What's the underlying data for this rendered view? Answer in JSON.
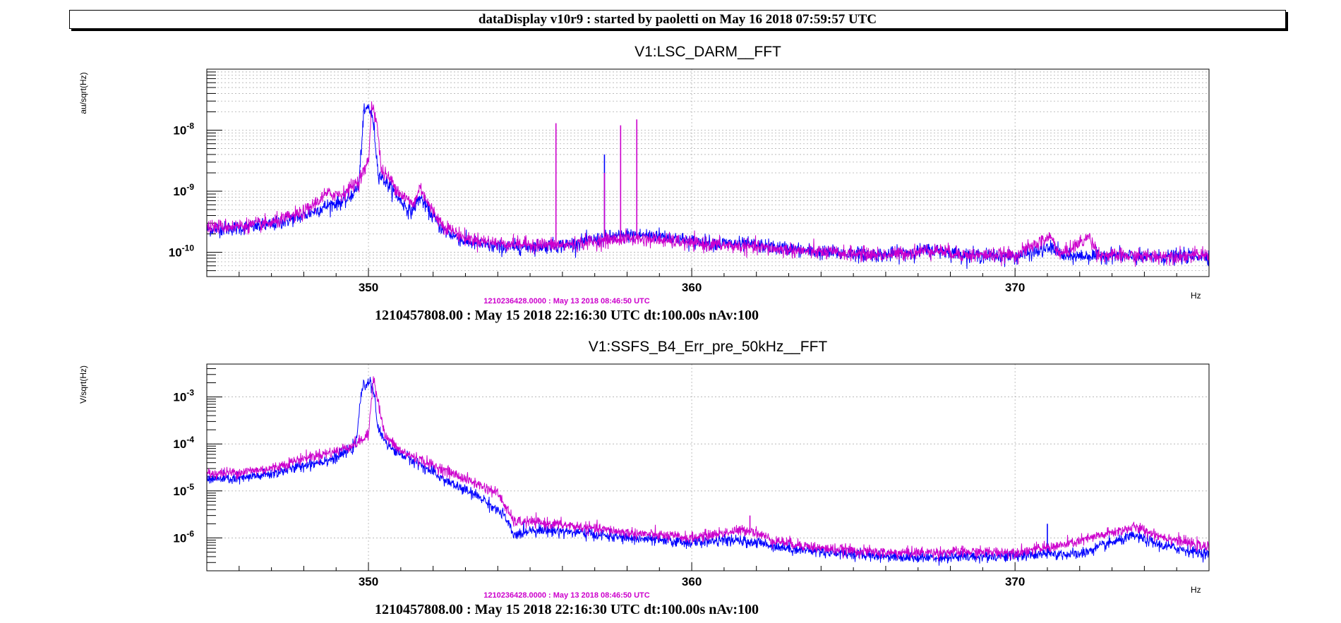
{
  "header": {
    "title": "dataDisplay v10r9 : started by paoletti on May 16 2018 07:59:57 UTC"
  },
  "colors": {
    "current": "#0000ff",
    "reference": "#cc00cc",
    "grid": "#b0b0b0"
  },
  "chart_data": [
    {
      "type": "line",
      "title": "V1:LSC_DARM__FFT",
      "ylabel": "au/sqrt(Hz)",
      "xlabel": "Hz",
      "xlim": [
        345,
        376
      ],
      "ylim": [
        4e-11,
        1e-07
      ],
      "yscale": "log",
      "grid": true,
      "xticks": [
        "350",
        "360",
        "370"
      ],
      "yticks": [
        {
          "v": 1e-08,
          "e": "-8"
        },
        {
          "v": 1e-09,
          "e": "-9"
        },
        {
          "v": 1e-10,
          "e": "-10"
        }
      ],
      "reference_label": "1210236428.0000 : May 13 2018 08:46:50 UTC",
      "timestamp": "1210457808.00 : May 15 2018 22:16:30 UTC dt:100.00s nAv:100",
      "series": [
        {
          "role": "current",
          "points": [
            [
              345,
              2.4e-10
            ],
            [
              346,
              2.5e-10
            ],
            [
              347,
              2.8e-10
            ],
            [
              348,
              4e-10
            ],
            [
              348.8,
              6e-10
            ],
            [
              349.3,
              7e-10
            ],
            [
              349.7,
              1.2e-09
            ],
            [
              349.85,
              1.8e-08
            ],
            [
              350,
              2.5e-08
            ],
            [
              350.15,
              1.4e-08
            ],
            [
              350.3,
              2e-09
            ],
            [
              350.6,
              1.3e-09
            ],
            [
              351,
              7e-10
            ],
            [
              351.3,
              4.5e-10
            ],
            [
              351.6,
              8e-10
            ],
            [
              351.9,
              4.5e-10
            ],
            [
              352.3,
              2.3e-10
            ],
            [
              353,
              1.5e-10
            ],
            [
              354,
              1.2e-10
            ],
            [
              356,
              1.3e-10
            ],
            [
              357,
              1.6e-10
            ],
            [
              358,
              1.9e-10
            ],
            [
              359,
              1.9e-10
            ],
            [
              360,
              1.5e-10
            ],
            [
              362,
              1.3e-10
            ],
            [
              364,
              1e-10
            ],
            [
              366,
              9e-11
            ],
            [
              367.5,
              1.1e-10
            ],
            [
              368.5,
              9e-11
            ],
            [
              370,
              8.5e-11
            ],
            [
              371.2,
              1.2e-10
            ],
            [
              371.5,
              8.5e-11
            ],
            [
              373,
              9e-11
            ],
            [
              374,
              8e-11
            ],
            [
              376,
              9e-11
            ]
          ],
          "spikes": [
            [
              357.3,
              4e-09
            ]
          ]
        },
        {
          "role": "reference",
          "points": [
            [
              345,
              2.6e-10
            ],
            [
              346,
              2.7e-10
            ],
            [
              347,
              3e-10
            ],
            [
              348,
              4.5e-10
            ],
            [
              348.7,
              9e-10
            ],
            [
              349.2,
              9e-10
            ],
            [
              349.7,
              1.5e-09
            ],
            [
              350,
              3e-09
            ],
            [
              350.1,
              2.8e-08
            ],
            [
              350.25,
              1.5e-08
            ],
            [
              350.4,
              2.2e-09
            ],
            [
              350.7,
              1.5e-09
            ],
            [
              351,
              9e-10
            ],
            [
              351.4,
              6e-10
            ],
            [
              351.6,
              1.2e-09
            ],
            [
              351.9,
              5.5e-10
            ],
            [
              352.3,
              2.8e-10
            ],
            [
              353,
              1.7e-10
            ],
            [
              354,
              1.4e-10
            ],
            [
              356,
              1.3e-10
            ],
            [
              357,
              1.5e-10
            ],
            [
              358,
              1.7e-10
            ],
            [
              359,
              1.6e-10
            ],
            [
              360,
              1.4e-10
            ],
            [
              362,
              1.2e-10
            ],
            [
              364,
              1e-10
            ],
            [
              366,
              9e-11
            ],
            [
              367.5,
              1.1e-10
            ],
            [
              368.5,
              9e-11
            ],
            [
              370,
              9e-11
            ],
            [
              371.1,
              1.8e-10
            ],
            [
              371.4,
              9e-11
            ],
            [
              372.3,
              1.8e-10
            ],
            [
              372.6,
              9e-11
            ],
            [
              374,
              8.5e-11
            ],
            [
              376,
              9e-11
            ]
          ],
          "spikes": [
            [
              355.8,
              1.3e-08
            ],
            [
              357.3,
              2e-09
            ],
            [
              357.8,
              1.2e-08
            ],
            [
              358.3,
              1.5e-08
            ]
          ]
        }
      ]
    },
    {
      "type": "line",
      "title": "V1:SSFS_B4_Err_pre_50kHz__FFT",
      "ylabel": "V/sqrt(Hz)",
      "xlabel": "Hz",
      "xlim": [
        345,
        376
      ],
      "ylim": [
        2e-07,
        0.005
      ],
      "yscale": "log",
      "grid": true,
      "xticks": [
        "350",
        "360",
        "370"
      ],
      "yticks": [
        {
          "v": 0.001,
          "e": "-3"
        },
        {
          "v": 0.0001,
          "e": "-4"
        },
        {
          "v": 1e-05,
          "e": "-5"
        },
        {
          "v": 1e-06,
          "e": "-6"
        }
      ],
      "reference_label": "1210236428.0000 : May 13 2018 08:46:50 UTC",
      "timestamp": "1210457808.00 : May 15 2018 22:16:30 UTC dt:100.00s nAv:100",
      "series": [
        {
          "role": "current",
          "points": [
            [
              345,
              1.8e-05
            ],
            [
              346,
              1.8e-05
            ],
            [
              347,
              2.3e-05
            ],
            [
              348,
              3.5e-05
            ],
            [
              349,
              5e-05
            ],
            [
              349.6,
              9e-05
            ],
            [
              349.8,
              0.0015
            ],
            [
              350,
              0.0022
            ],
            [
              350.15,
              0.0015
            ],
            [
              350.3,
              0.0002
            ],
            [
              350.7,
              8e-05
            ],
            [
              351.5,
              4e-05
            ],
            [
              352.5,
              1.5e-05
            ],
            [
              353.5,
              7e-06
            ],
            [
              354.2,
              3e-06
            ],
            [
              354.5,
              1.1e-06
            ],
            [
              355,
              1.5e-06
            ],
            [
              356,
              1.4e-06
            ],
            [
              358,
              1e-06
            ],
            [
              360,
              8e-07
            ],
            [
              361,
              9e-07
            ],
            [
              362,
              8e-07
            ],
            [
              363,
              6e-07
            ],
            [
              365,
              4.5e-07
            ],
            [
              367,
              3.8e-07
            ],
            [
              369,
              4e-07
            ],
            [
              370,
              4.2e-07
            ],
            [
              371,
              4.5e-07
            ],
            [
              372,
              4.5e-07
            ],
            [
              373,
              8e-07
            ],
            [
              373.7,
              1.1e-06
            ],
            [
              374.5,
              7e-07
            ],
            [
              376,
              4.5e-07
            ]
          ],
          "spikes": [
            [
              371.0,
              2e-06
            ]
          ]
        },
        {
          "role": "reference",
          "points": [
            [
              345,
              2.3e-05
            ],
            [
              346,
              2.5e-05
            ],
            [
              347,
              3e-05
            ],
            [
              348,
              5e-05
            ],
            [
              349,
              7e-05
            ],
            [
              349.6,
              0.0001
            ],
            [
              350,
              0.00015
            ],
            [
              350.15,
              0.0028
            ],
            [
              350.3,
              0.0008
            ],
            [
              350.5,
              0.00015
            ],
            [
              351,
              7e-05
            ],
            [
              352,
              3.5e-05
            ],
            [
              353,
              1.8e-05
            ],
            [
              354,
              9e-06
            ],
            [
              354.5,
              2.2e-06
            ],
            [
              355,
              2.2e-06
            ],
            [
              356,
              1.9e-06
            ],
            [
              358,
              1.3e-06
            ],
            [
              360,
              1e-06
            ],
            [
              361,
              1.3e-06
            ],
            [
              361.8,
              1.5e-06
            ],
            [
              362.5,
              9e-07
            ],
            [
              364,
              6e-07
            ],
            [
              366,
              4.8e-07
            ],
            [
              368,
              5e-07
            ],
            [
              370,
              5e-07
            ],
            [
              371.5,
              7e-07
            ],
            [
              373,
              1.3e-06
            ],
            [
              373.7,
              1.7e-06
            ],
            [
              374.5,
              1.1e-06
            ],
            [
              376,
              6e-07
            ]
          ],
          "spikes": [
            [
              361.8,
              3e-06
            ]
          ]
        }
      ]
    }
  ]
}
